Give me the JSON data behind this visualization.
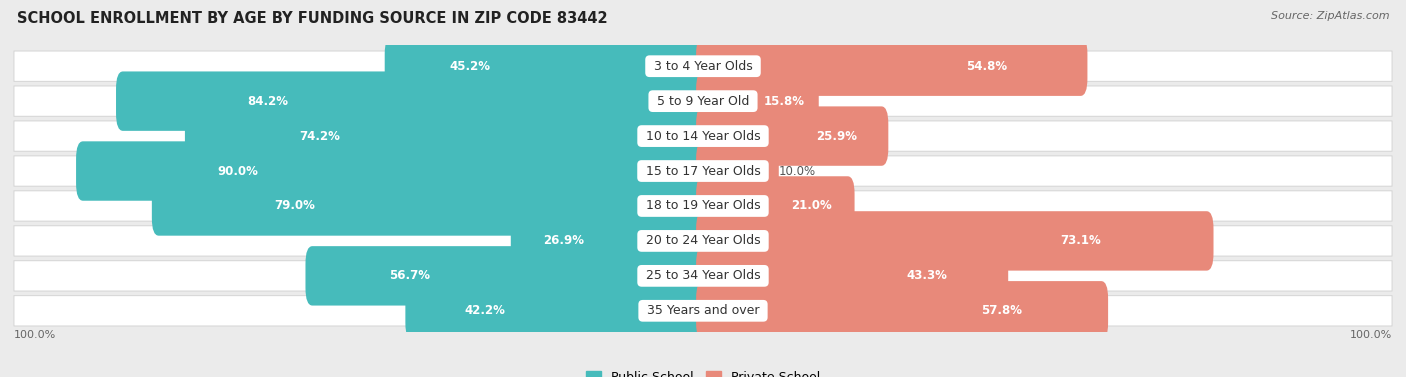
{
  "title": "SCHOOL ENROLLMENT BY AGE BY FUNDING SOURCE IN ZIP CODE 83442",
  "source": "Source: ZipAtlas.com",
  "categories": [
    "3 to 4 Year Olds",
    "5 to 9 Year Old",
    "10 to 14 Year Olds",
    "15 to 17 Year Olds",
    "18 to 19 Year Olds",
    "20 to 24 Year Olds",
    "25 to 34 Year Olds",
    "35 Years and over"
  ],
  "public_pct": [
    45.2,
    84.2,
    74.2,
    90.0,
    79.0,
    26.9,
    56.7,
    42.2
  ],
  "private_pct": [
    54.8,
    15.8,
    25.9,
    10.0,
    21.0,
    73.1,
    43.3,
    57.8
  ],
  "public_color": "#46BBBB",
  "private_color": "#E8897A",
  "background_color": "#EBEBEB",
  "row_bg_color": "#FFFFFF",
  "row_border_color": "#D8D8D8",
  "title_fontsize": 10.5,
  "label_fontsize": 9,
  "pct_fontsize": 8.5,
  "footer_fontsize": 8,
  "legend_fontsize": 9,
  "source_fontsize": 8
}
